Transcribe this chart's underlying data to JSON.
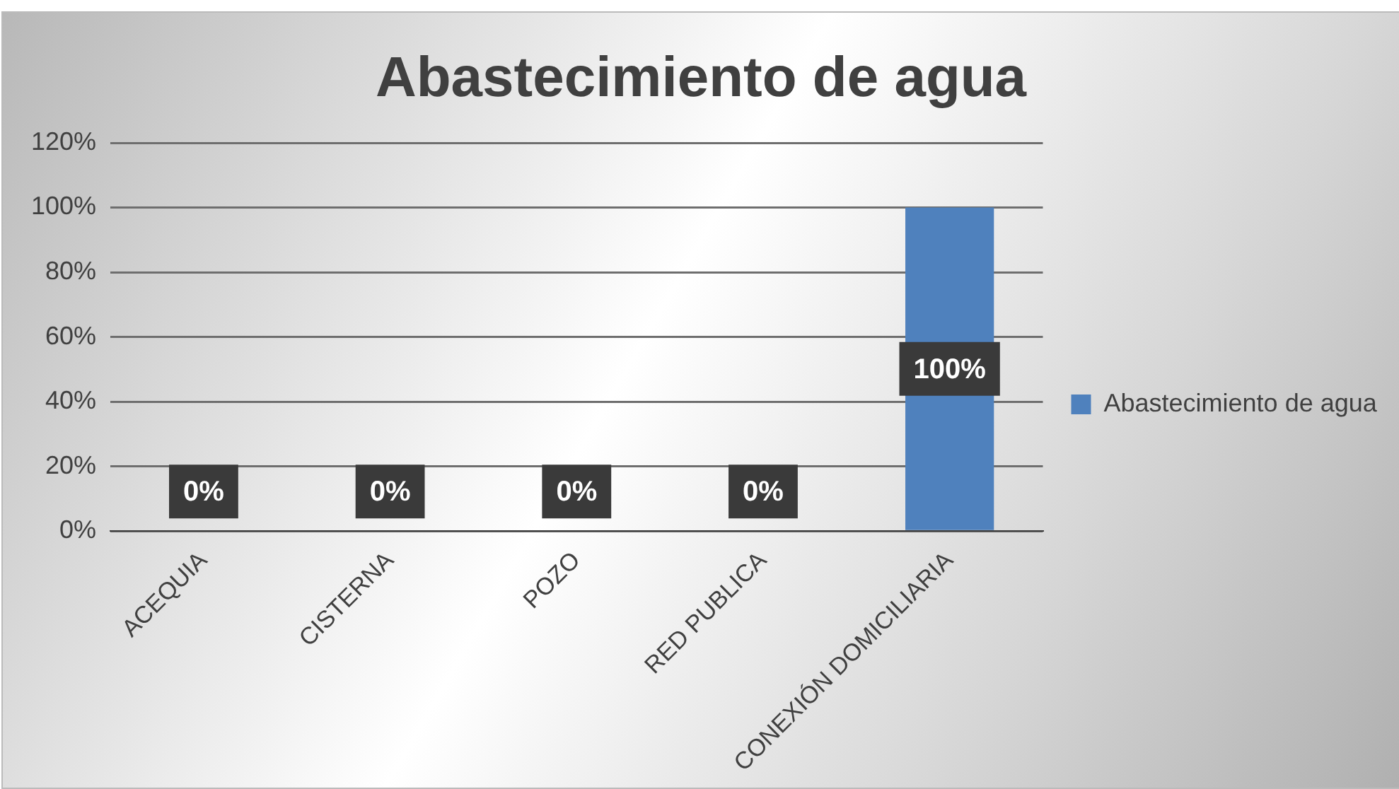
{
  "chart_data": {
    "type": "bar",
    "title": "Abastecimiento de agua",
    "categories": [
      "ACEQUIA",
      "CISTERNA",
      "POZO",
      "RED PUBLICA",
      "CONEXIÓN DOMICILIARIA"
    ],
    "series": [
      {
        "name": "Abastecimiento de agua",
        "color": "#4f81bd",
        "values": [
          0,
          0,
          0,
          0,
          100
        ],
        "value_labels": [
          "0%",
          "0%",
          "0%",
          "0%",
          "100%"
        ]
      }
    ],
    "ylim": [
      0,
      120
    ],
    "yticks": [
      {
        "value": 0,
        "label": "0%"
      },
      {
        "value": 20,
        "label": "20%"
      },
      {
        "value": 40,
        "label": "40%"
      },
      {
        "value": 60,
        "label": "60%"
      },
      {
        "value": 80,
        "label": "80%"
      },
      {
        "value": 100,
        "label": "100%"
      },
      {
        "value": 120,
        "label": "120%"
      }
    ],
    "grid": "y",
    "legend": "right"
  }
}
